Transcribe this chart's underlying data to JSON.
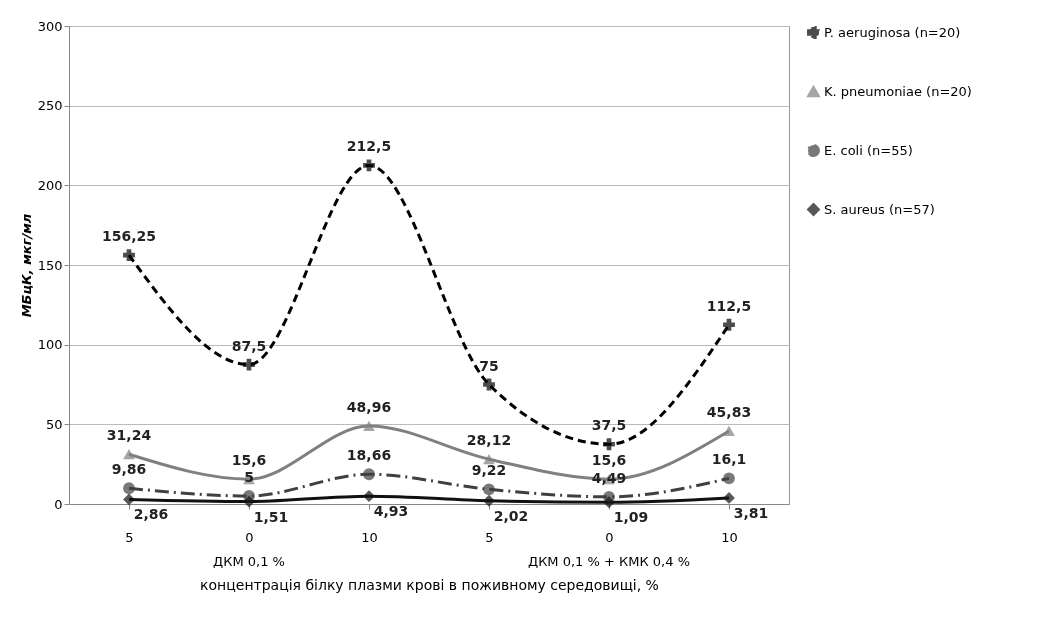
{
  "chart_data": {
    "type": "line",
    "ylabel": "МБцК, мкг/мл",
    "xlabel": "концентрація білку плазми крові в поживному середовищі, %",
    "categories": [
      "5",
      "0",
      "10",
      "5",
      "0",
      "10"
    ],
    "annotations": [
      "ДКМ 0,1 %",
      "ДКМ 0,1 % + КМК 0,4 %"
    ],
    "ylim": [
      0,
      300
    ],
    "yticks": [
      0,
      50,
      100,
      150,
      200,
      250,
      300
    ],
    "grid": "y",
    "legend": "right",
    "series": [
      {
        "name": "P. aeruginosa (n=20)",
        "color": "#000000",
        "marker": "cross",
        "line_style": "dashed",
        "values": [
          156.25,
          87.5,
          212.5,
          75,
          37.5,
          112.5
        ],
        "value_labels": [
          "156,25",
          "87,5",
          "212,5",
          "75",
          "37,5",
          "112,5"
        ]
      },
      {
        "name": "K. pneumoniae (n=20)",
        "color": "#808080",
        "marker": "triangle",
        "line_style": "solid",
        "values": [
          31.24,
          15.6,
          48.96,
          28.12,
          15.6,
          45.83
        ],
        "value_labels": [
          "31,24",
          "15,6",
          "48,96",
          "28,12",
          "15,6",
          "45,83"
        ]
      },
      {
        "name": "E. coli (n=55)",
        "color": "#404040",
        "marker": "circle",
        "line_style": "dotted",
        "values": [
          9.86,
          5,
          18.66,
          9.22,
          4.49,
          16.1
        ],
        "value_labels": [
          "9,86",
          "5",
          "18,66",
          "9,22",
          "4,49",
          "16,1"
        ]
      },
      {
        "name": "S. aureus (n=57)",
        "color": "#111111",
        "marker": "diamond",
        "line_style": "solid",
        "values": [
          2.86,
          1.51,
          4.93,
          2.02,
          1.09,
          3.81
        ],
        "value_labels": [
          "2,86",
          "1,51",
          "4,93",
          "2,02",
          "1,09",
          "3,81"
        ]
      }
    ]
  }
}
